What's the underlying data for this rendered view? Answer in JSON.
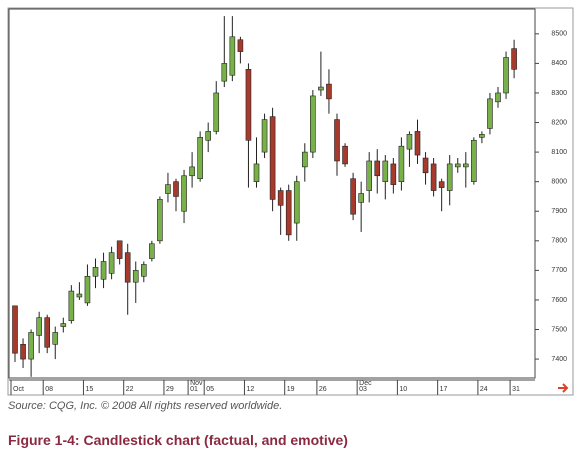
{
  "chart_data": {
    "type": "candlestick",
    "categories": [
      "Oct",
      null,
      null,
      null,
      "08",
      null,
      null,
      null,
      null,
      "15",
      null,
      null,
      null,
      null,
      "22",
      null,
      null,
      null,
      null,
      "29",
      null,
      null,
      "01",
      null,
      "05",
      null,
      null,
      null,
      null,
      "12",
      null,
      null,
      null,
      null,
      "19",
      null,
      null,
      null,
      "26",
      null,
      null,
      null,
      null,
      "03",
      null,
      null,
      null,
      null,
      "10",
      null,
      null,
      null,
      null,
      "17",
      null,
      null,
      null,
      null,
      "24",
      null,
      null,
      null,
      "31"
    ],
    "month_labels": [
      {
        "category": 22,
        "label": "Nov"
      },
      {
        "category": 43,
        "label": "Dec"
      }
    ],
    "series": [
      {
        "open": [
          7580,
          7450,
          7400,
          7480,
          7540,
          7450,
          7510,
          7530,
          7610,
          7590,
          7680,
          7670,
          7690,
          7800,
          7760,
          7660,
          7680,
          7740,
          7800,
          7960,
          8000,
          7900,
          8020,
          8010,
          8140,
          8170,
          8340,
          8360,
          8480,
          8380,
          8000,
          8100,
          8220,
          7970,
          7970,
          7860,
          8050,
          8100,
          8310,
          8330,
          8210,
          8120,
          8010,
          7930,
          7970,
          8070,
          8000,
          8060,
          8000,
          8110,
          8170,
          8080,
          8060,
          8000,
          7970,
          8050,
          8050,
          8000,
          8150,
          8180,
          8270,
          8300,
          8450
        ],
        "high": [
          7580,
          7470,
          7500,
          7560,
          7550,
          7510,
          7540,
          7650,
          7660,
          7720,
          7740,
          7760,
          7780,
          7800,
          7790,
          7730,
          7730,
          7800,
          7950,
          8030,
          8010,
          8040,
          8100,
          8170,
          8200,
          8340,
          8560,
          8560,
          8490,
          8400,
          8150,
          8230,
          8250,
          7980,
          7990,
          8020,
          8130,
          8310,
          8440,
          8380,
          8230,
          8130,
          8030,
          8000,
          8100,
          8110,
          8090,
          8080,
          8150,
          8170,
          8210,
          8100,
          8080,
          8010,
          8090,
          8080,
          8100,
          8150,
          8170,
          8300,
          8320,
          8440,
          8480
        ],
        "low": [
          7390,
          7370,
          7340,
          7420,
          7420,
          7400,
          7490,
          7520,
          7600,
          7580,
          7640,
          7640,
          7670,
          7720,
          7550,
          7590,
          7660,
          7730,
          7790,
          7930,
          7900,
          7860,
          7980,
          8000,
          8100,
          8160,
          8320,
          8340,
          8400,
          7980,
          7980,
          8080,
          7900,
          7820,
          7800,
          7800,
          8000,
          8080,
          8290,
          8230,
          8020,
          8050,
          7870,
          7830,
          7930,
          7960,
          7940,
          7960,
          7970,
          8050,
          8060,
          7990,
          7950,
          7900,
          7920,
          8030,
          7980,
          7990,
          8130,
          8160,
          8250,
          8280,
          8350
        ],
        "close": [
          7420,
          7400,
          7490,
          7540,
          7440,
          7490,
          7520,
          7630,
          7620,
          7680,
          7710,
          7730,
          7760,
          7740,
          7660,
          7700,
          7720,
          7790,
          7940,
          7990,
          7950,
          8020,
          8050,
          8150,
          8170,
          8300,
          8400,
          8490,
          8440,
          8140,
          8060,
          8210,
          7940,
          7920,
          7820,
          8000,
          8100,
          8290,
          8320,
          8280,
          8070,
          8060,
          7890,
          7960,
          8070,
          8020,
          8070,
          7990,
          8120,
          8160,
          8090,
          8030,
          7970,
          7980,
          8060,
          8060,
          8060,
          8140,
          8160,
          8280,
          8300,
          8420,
          8380
        ]
      }
    ],
    "up_color": "#78b04a",
    "down_color": "#a63a2c",
    "ylim": [
      7336,
      8584
    ],
    "yticks": [
      7400,
      7500,
      7600,
      7700,
      7800,
      7900,
      8000,
      8100,
      8200,
      8300,
      8400,
      8500
    ],
    "source": "Source: CQG, Inc. © 2008 All rights reserved worldwide.",
    "figure_title": "Figure 1-4: Candlestick chart (factual, and emotive)"
  }
}
